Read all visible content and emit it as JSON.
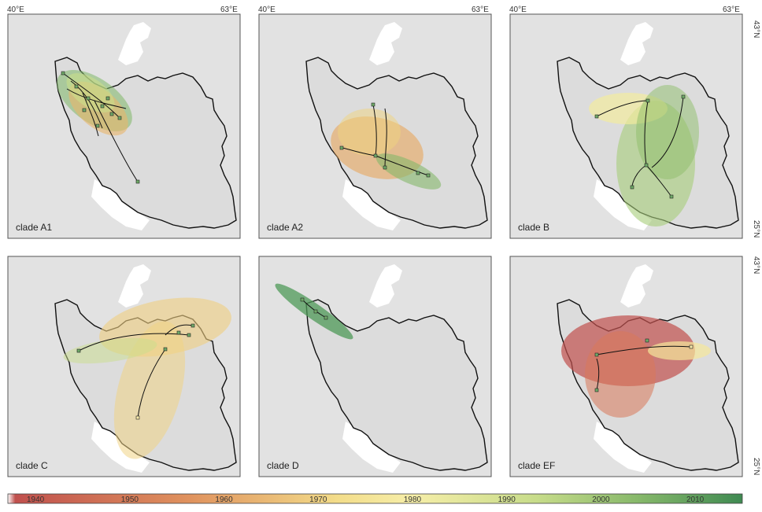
{
  "axes": {
    "lon_left": "40°E",
    "lon_right": "63°E",
    "lat_top": "43°N",
    "lat_bottom": "25°N"
  },
  "panels": [
    {
      "id": "A1",
      "label": "clade A1"
    },
    {
      "id": "A2",
      "label": "clade A2"
    },
    {
      "id": "B",
      "label": "clade B"
    },
    {
      "id": "C",
      "label": "clade C"
    },
    {
      "id": "D",
      "label": "clade D"
    },
    {
      "id": "EF",
      "label": "clade EF"
    }
  ],
  "colorbar": {
    "ticks": [
      "1940",
      "1950",
      "1960",
      "1970",
      "1980",
      "1990",
      "2000",
      "2010"
    ],
    "stops": [
      "#ffffff",
      "#c0504d",
      "#d9785a",
      "#e8b25c",
      "#f5e79a",
      "#c7dc8a",
      "#86b86a",
      "#3f8a52"
    ]
  },
  "colors": {
    "land": "#e4e4e4",
    "sea": "#ffffff",
    "border": "#000000"
  }
}
